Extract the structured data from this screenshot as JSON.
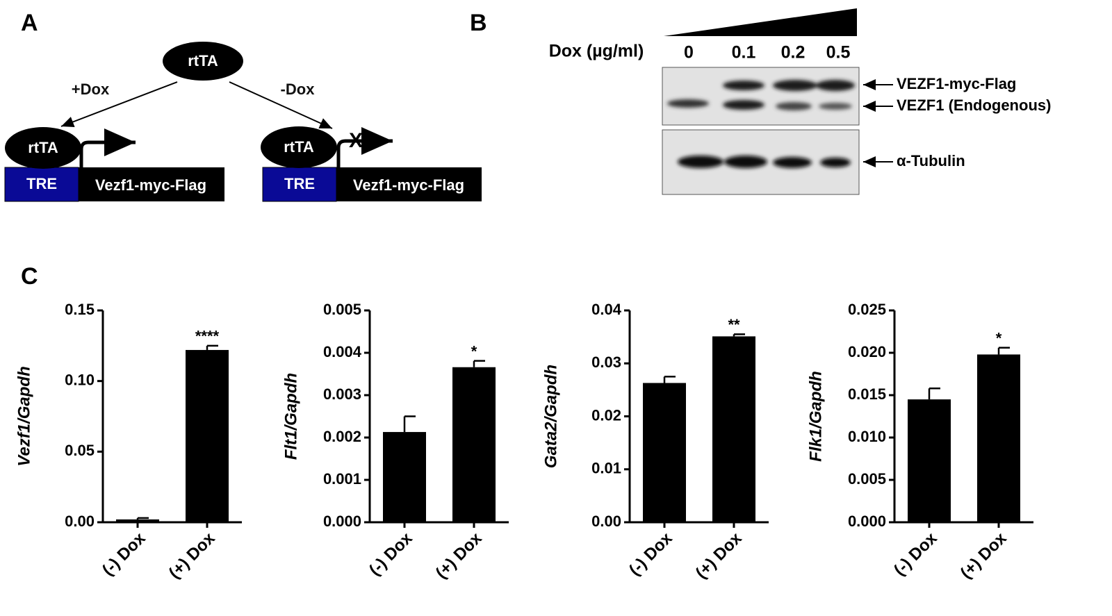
{
  "panel_a": {
    "label": "A",
    "activator": "rtTA",
    "plus_dox": "+Dox",
    "minus_dox": "-Dox",
    "left": {
      "activator": "rtTA",
      "promoter": "TRE",
      "gene": "Vezf1-myc-Flag"
    },
    "right": {
      "activator": "rtTA",
      "promoter": "TRE",
      "gene": "Vezf1-myc-Flag",
      "blocked": "X"
    }
  },
  "panel_b": {
    "label": "B",
    "dox_label": "Dox (µg/ml)",
    "doses": [
      "0",
      "0.1",
      "0.2",
      "0.5"
    ],
    "bands": [
      "VEZF1-myc-Flag",
      "VEZF1 (Endogenous)",
      "α-Tubulin"
    ]
  },
  "panel_c_label": "C",
  "chart_data": [
    {
      "type": "bar",
      "ylabel": "Vezf1/Gapdh",
      "categories": [
        "(-) Dox",
        "(+) Dox"
      ],
      "values": [
        0.002,
        0.122
      ],
      "errors": [
        0.001,
        0.003
      ],
      "annotations": [
        null,
        "****"
      ],
      "color": "#000000",
      "ylim": [
        0,
        0.15
      ],
      "yticks": [
        {
          "value": 0,
          "label": "0.00"
        },
        0.05,
        {
          "value": 0.1,
          "label": "0.10"
        },
        0.15
      ]
    },
    {
      "type": "bar",
      "ylabel": "Flt1/Gapdh",
      "categories": [
        "(-) Dox",
        "(+) Dox"
      ],
      "values": [
        0.00213,
        0.00366
      ],
      "errors": [
        0.00037,
        0.00015
      ],
      "annotations": [
        null,
        "*"
      ],
      "color": "#000000",
      "ylim": [
        0,
        0.005
      ],
      "yticks": [
        {
          "value": 0,
          "label": "0.000"
        },
        0.001,
        0.002,
        0.003,
        0.004,
        0.005
      ]
    },
    {
      "type": "bar",
      "ylabel": "Gata2/Gapdh",
      "categories": [
        "(-) Dox",
        "(+) Dox"
      ],
      "values": [
        0.0263,
        0.0351
      ],
      "errors": [
        0.0012,
        0.0004
      ],
      "annotations": [
        null,
        "**"
      ],
      "color": "#000000",
      "ylim": [
        0,
        0.04
      ],
      "yticks": [
        {
          "value": 0,
          "label": "0.00"
        },
        0.01,
        0.02,
        0.03,
        0.04
      ]
    },
    {
      "type": "bar",
      "ylabel": "Flk1/Gapdh",
      "categories": [
        "(-) Dox",
        "(+) Dox"
      ],
      "values": [
        0.0145,
        0.0198
      ],
      "errors": [
        0.0013,
        0.0008
      ],
      "annotations": [
        null,
        "*"
      ],
      "color": "#000000",
      "ylim": [
        0,
        0.025
      ],
      "yticks": [
        {
          "value": 0,
          "label": "0.000"
        },
        0.005,
        {
          "value": 0.01,
          "label": "0.010"
        },
        0.015,
        {
          "value": 0.02,
          "label": "0.020"
        },
        0.025
      ]
    }
  ]
}
